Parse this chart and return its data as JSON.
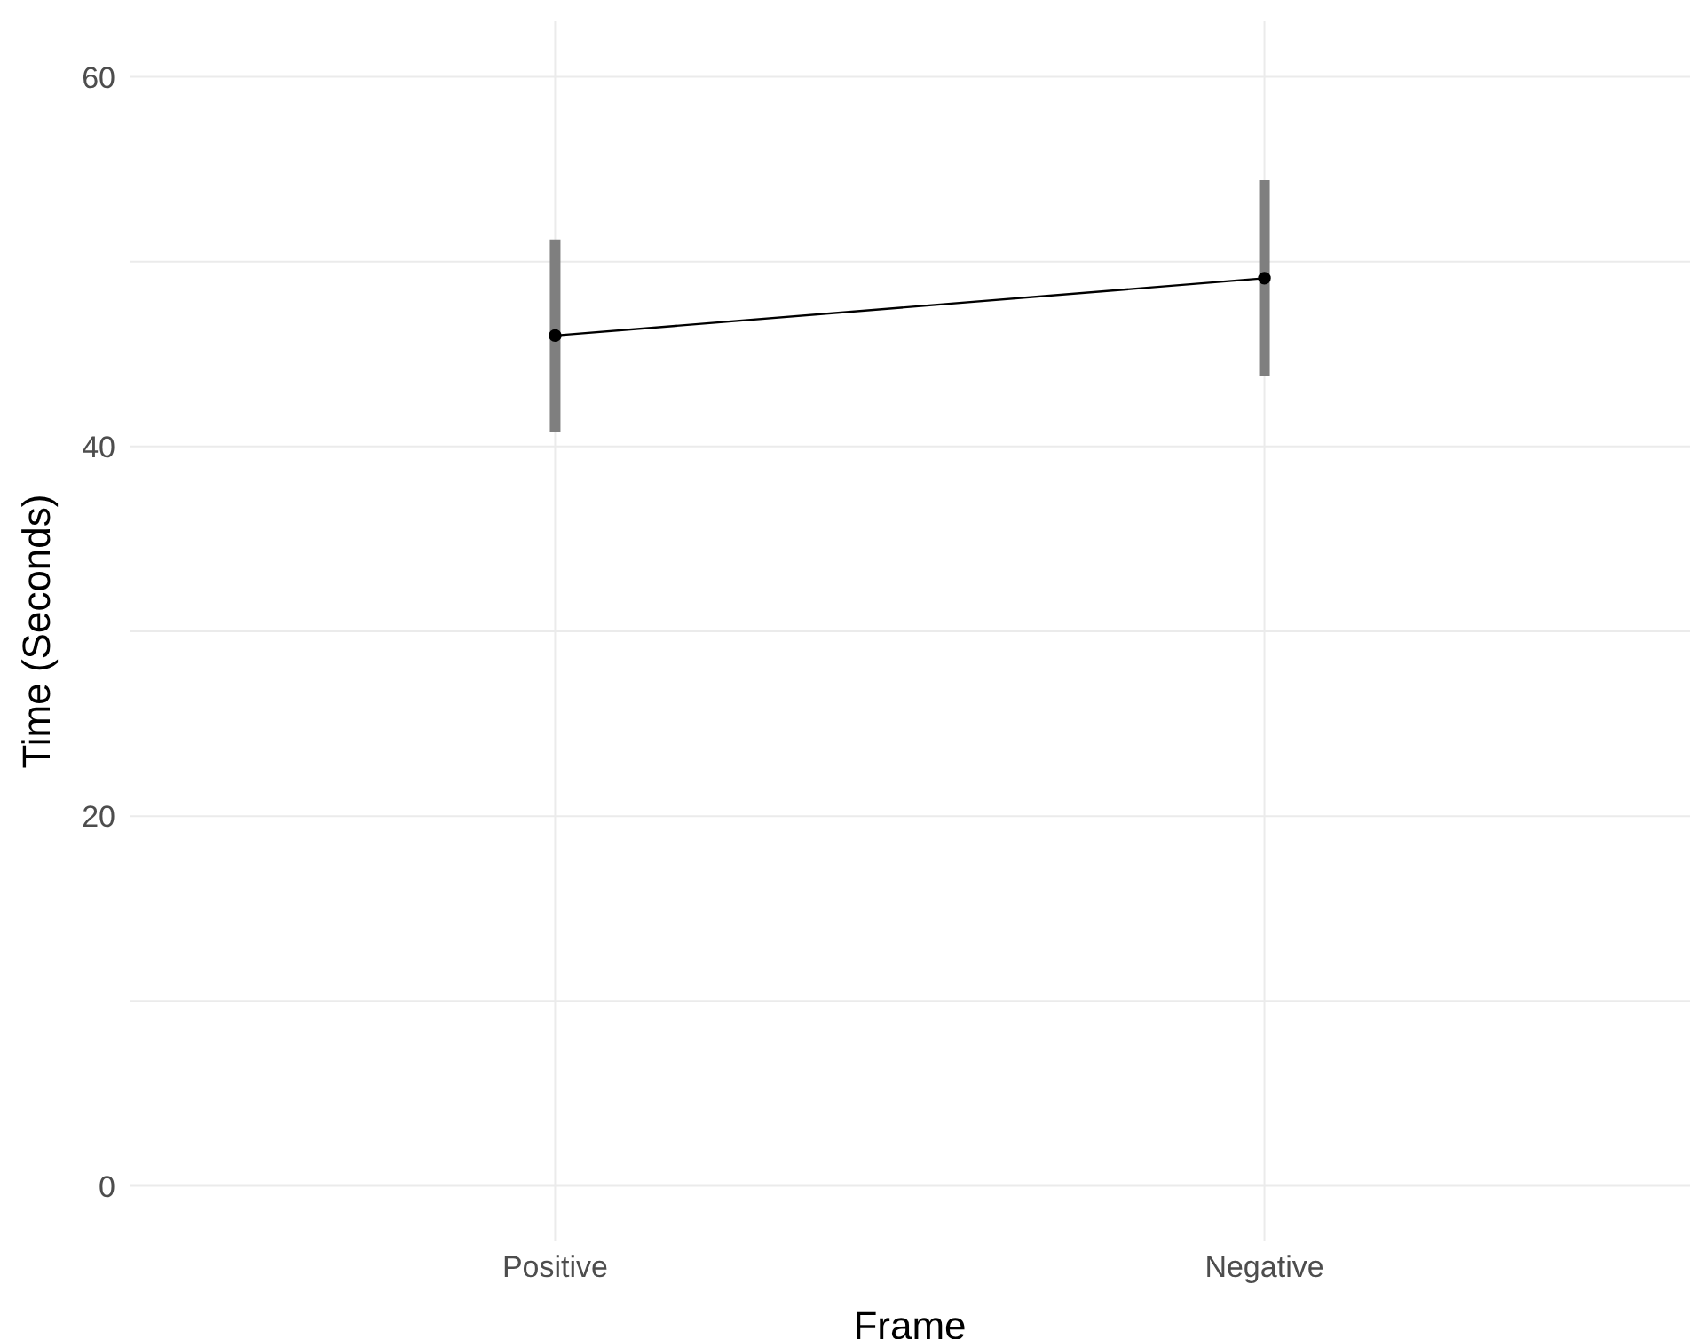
{
  "chart_data": {
    "type": "line",
    "xlabel": "Frame",
    "ylabel": "Time (Seconds)",
    "categories": [
      "Positive",
      "Negative"
    ],
    "series": [
      {
        "color": "#000000",
        "values": [
          46,
          49.1
        ],
        "errors": [
          5.2,
          5.3
        ]
      }
    ],
    "ylim": [
      -3,
      63
    ],
    "yticks": [
      0,
      {
        "value": 10,
        "label": null
      },
      20,
      {
        "value": 30,
        "label": null
      },
      40,
      {
        "value": 50,
        "label": null
      },
      60
    ],
    "grid": true,
    "marker": "circle",
    "legend": false
  }
}
